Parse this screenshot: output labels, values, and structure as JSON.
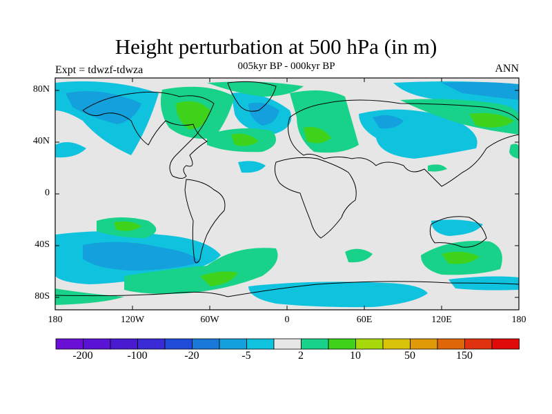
{
  "header": {
    "title": "Height perturbation at 500 hPa (in m)",
    "subtitle": "005kyr BP - 000kyr BP",
    "left_label": "Expt = tdwzf-tdwza",
    "right_label": "ANN"
  },
  "map": {
    "lat_ticks": [
      "80N",
      "40N",
      "0",
      "40S",
      "80S"
    ],
    "lon_ticks": [
      "180",
      "120W",
      "60W",
      "0",
      "60E",
      "120E",
      "180"
    ],
    "background_color": "#e6e6e6"
  },
  "colorbar": {
    "colors": [
      "#6a0fd6",
      "#5a12d4",
      "#4a1ad0",
      "#3a2ad6",
      "#1f4bd8",
      "#1a78d8",
      "#13a0dc",
      "#0fc3de",
      "#e6e6e6",
      "#18d28a",
      "#3ed21a",
      "#a7d80c",
      "#d8c20a",
      "#e09a08",
      "#e0660a",
      "#e0320e",
      "#e00a0a"
    ],
    "labels": [
      "-200",
      "-100",
      "-20",
      "-5",
      "2",
      "10",
      "50",
      "150"
    ]
  }
}
